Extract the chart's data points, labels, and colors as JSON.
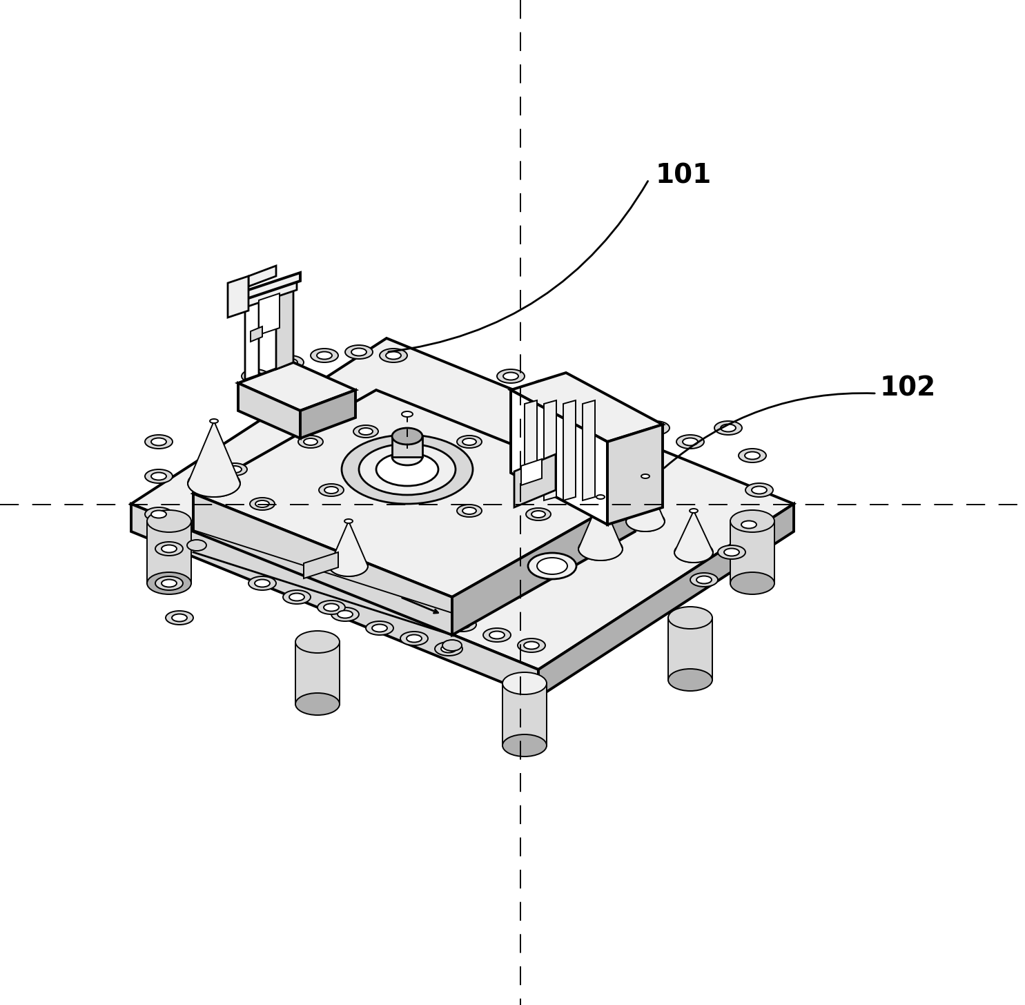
{
  "background_color": "#ffffff",
  "line_color": "#000000",
  "label_101": "101",
  "label_102": "102",
  "label_fontsize": 28,
  "fig_width": 14.85,
  "fig_height": 14.56,
  "dpi": 100,
  "crosshair_vx": 0.508,
  "crosshair_hy": 0.502,
  "lw_thick": 2.8,
  "lw_med": 2.0,
  "lw_thin": 1.4
}
